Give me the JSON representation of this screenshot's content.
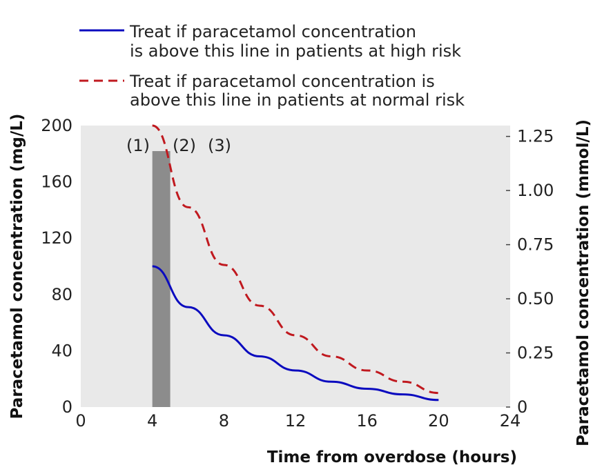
{
  "chart_data": {
    "type": "line",
    "xlabel": "Time from overdose (hours)",
    "ylabel": "Paracetamol concentration (mg/L)",
    "y2label": "Paracetamol concentration (mmol/L)",
    "xlim": [
      0,
      24
    ],
    "ylim": [
      0,
      200
    ],
    "y2lim": [
      0,
      1.3
    ],
    "xticks": [
      "0",
      "4",
      "8",
      "12",
      "16",
      "20",
      "24"
    ],
    "yticks": [
      "0",
      "40",
      "80",
      "120",
      "160",
      "200"
    ],
    "y2ticks": [
      "0",
      "0.25",
      "0.50",
      "0.75",
      "1.00",
      "1.25"
    ],
    "shaded_interval": [
      4,
      5
    ],
    "region_labels": [
      "(1)",
      "(2)",
      "(3)"
    ],
    "series": [
      {
        "name": "Treat if paracetamol concentration is above this line in patients at high risk",
        "style": "solid",
        "color": "#0b0bbf",
        "x": [
          4,
          6,
          8,
          10,
          12,
          14,
          16,
          18,
          20
        ],
        "y": [
          100,
          71,
          51,
          36,
          26,
          18,
          13,
          9,
          5
        ]
      },
      {
        "name": "Treat if paracetamol concentration is above this line in patients at normal risk",
        "style": "dashed",
        "color": "#c0191f",
        "x": [
          4,
          6,
          8,
          10,
          12,
          14,
          16,
          18,
          20
        ],
        "y": [
          200,
          142,
          101,
          72,
          51,
          36,
          26,
          18,
          10
        ]
      }
    ],
    "legend": [
      {
        "line1": "Treat if paracetamol concentration",
        "line2": "is above this line in patients at high risk"
      },
      {
        "line1": "Treat if paracetamol concentration is",
        "line2": "above this line in patients at normal risk"
      }
    ],
    "colors": {
      "plot_bg": "#e9e9e9",
      "shade": "#8c8c8c"
    },
    "grid": false,
    "legend_position": "top"
  }
}
